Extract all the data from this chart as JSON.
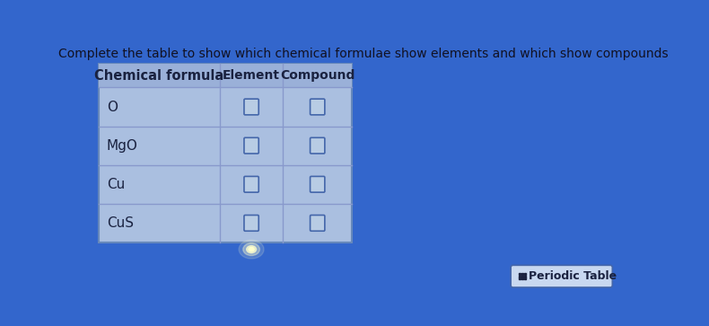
{
  "title": "Complete the table to show which chemical formulae show elements and which show compounds",
  "bg_color": "#3366cc",
  "table_bg": "#aabfe0",
  "header_bg": "#9ab0d8",
  "grid_color": "#8899cc",
  "table_border_color": "#6688bb",
  "text_color": "#1a2240",
  "header_text_color": "#1a2240",
  "title_color": "#111122",
  "rows": [
    "O",
    "MgO",
    "Cu",
    "CuS"
  ],
  "col_headers": [
    "Chemical formula",
    "Element",
    "Compound"
  ],
  "periodic_table_label": "Periodic Table",
  "checkbox_fill": "#b8cce4",
  "checkbox_border": "#4466aa",
  "pt_bg": "#c8d8f0",
  "pt_border": "#4466aa"
}
